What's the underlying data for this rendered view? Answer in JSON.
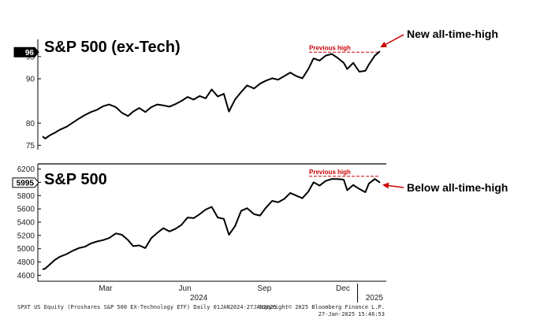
{
  "colors": {
    "line": "#000000",
    "annotation": "#cc0000",
    "badge_top_bg": "#000000",
    "badge_top_fg": "#ffffff",
    "badge_bottom_bg": "#ffffff",
    "badge_bottom_fg": "#000000"
  },
  "chart_data": [
    {
      "type": "line",
      "title": "S&P 500 (ex-Tech)",
      "ylim": [
        74,
        98
      ],
      "yticks": [
        75,
        80,
        90,
        95
      ],
      "last_value_label": "96",
      "previous_high_label": "Previous high",
      "previous_high_value": 96,
      "annotation": "New all-time-high",
      "series": [
        {
          "x": [
            "2024-01-02",
            "2024-01-05",
            "2024-01-10",
            "2024-01-16",
            "2024-01-22",
            "2024-01-30",
            "2024-02-06",
            "2024-02-13",
            "2024-02-20",
            "2024-02-27",
            "2024-03-05",
            "2024-03-12",
            "2024-03-19",
            "2024-03-27",
            "2024-04-03",
            "2024-04-10",
            "2024-04-16",
            "2024-04-23",
            "2024-04-30",
            "2024-05-07",
            "2024-05-14",
            "2024-05-21",
            "2024-05-28",
            "2024-06-04",
            "2024-06-11",
            "2024-06-18",
            "2024-06-25",
            "2024-07-02",
            "2024-07-09",
            "2024-07-16",
            "2024-07-23",
            "2024-07-30",
            "2024-08-05",
            "2024-08-12",
            "2024-08-19",
            "2024-08-26",
            "2024-09-03",
            "2024-09-10",
            "2024-09-17",
            "2024-09-24",
            "2024-10-01",
            "2024-10-08",
            "2024-10-15",
            "2024-10-22",
            "2024-10-29",
            "2024-11-05",
            "2024-11-11",
            "2024-11-18",
            "2024-11-25",
            "2024-12-02",
            "2024-12-09",
            "2024-12-16",
            "2024-12-20",
            "2024-12-27",
            "2025-01-03",
            "2025-01-10",
            "2025-01-14",
            "2025-01-21",
            "2025-01-27"
          ],
          "y": [
            77.0,
            76.5,
            77.2,
            77.8,
            78.5,
            79.2,
            80.1,
            81.0,
            81.8,
            82.5,
            83.0,
            83.8,
            84.2,
            83.6,
            82.3,
            81.6,
            82.6,
            83.4,
            82.5,
            83.6,
            84.2,
            84.0,
            83.7,
            84.3,
            85.0,
            85.9,
            85.3,
            86.1,
            85.6,
            87.6,
            86.0,
            86.6,
            82.6,
            85.3,
            87.0,
            88.5,
            87.8,
            88.9,
            89.6,
            90.1,
            89.8,
            90.6,
            91.4,
            90.6,
            90.1,
            92.2,
            94.6,
            94.1,
            95.2,
            95.6,
            94.7,
            93.6,
            92.2,
            93.6,
            91.6,
            91.8,
            93.2,
            95.2,
            96.2
          ]
        }
      ]
    },
    {
      "type": "line",
      "title": "S&P 500",
      "ylim": [
        4570,
        6230
      ],
      "yticks": [
        4600,
        4800,
        5000,
        5200,
        5400,
        5600,
        5800,
        6000,
        6200
      ],
      "last_value_label": "5995",
      "previous_high_label": "Previous high",
      "previous_high_value": 6090,
      "annotation": "Below all-time-high",
      "series": [
        {
          "x": [
            "2024-01-02",
            "2024-01-05",
            "2024-01-10",
            "2024-01-16",
            "2024-01-22",
            "2024-01-30",
            "2024-02-06",
            "2024-02-13",
            "2024-02-20",
            "2024-02-27",
            "2024-03-05",
            "2024-03-12",
            "2024-03-19",
            "2024-03-27",
            "2024-04-03",
            "2024-04-10",
            "2024-04-16",
            "2024-04-23",
            "2024-04-30",
            "2024-05-07",
            "2024-05-14",
            "2024-05-21",
            "2024-05-28",
            "2024-06-04",
            "2024-06-11",
            "2024-06-18",
            "2024-06-25",
            "2024-07-02",
            "2024-07-09",
            "2024-07-16",
            "2024-07-23",
            "2024-07-30",
            "2024-08-05",
            "2024-08-12",
            "2024-08-19",
            "2024-08-26",
            "2024-09-03",
            "2024-09-10",
            "2024-09-17",
            "2024-09-24",
            "2024-10-01",
            "2024-10-08",
            "2024-10-15",
            "2024-10-22",
            "2024-10-29",
            "2024-11-05",
            "2024-11-11",
            "2024-11-18",
            "2024-11-25",
            "2024-12-02",
            "2024-12-09",
            "2024-12-16",
            "2024-12-20",
            "2024-12-27",
            "2025-01-03",
            "2025-01-10",
            "2025-01-14",
            "2025-01-21",
            "2025-01-27"
          ],
          "y": [
            4690,
            4700,
            4760,
            4830,
            4880,
            4920,
            4970,
            5010,
            5030,
            5080,
            5110,
            5130,
            5160,
            5230,
            5210,
            5130,
            5040,
            5050,
            5010,
            5160,
            5240,
            5310,
            5260,
            5300,
            5360,
            5470,
            5460,
            5520,
            5590,
            5630,
            5470,
            5450,
            5210,
            5340,
            5570,
            5610,
            5520,
            5500,
            5620,
            5720,
            5700,
            5750,
            5840,
            5800,
            5760,
            5860,
            6000,
            5950,
            6020,
            6050,
            6050,
            6040,
            5880,
            5960,
            5900,
            5850,
            5980,
            6050,
            5995
          ]
        }
      ]
    }
  ],
  "x_axis": {
    "month_labels": [
      {
        "label": "Mar",
        "date": "2024-03-15"
      },
      {
        "label": "Jun",
        "date": "2024-06-15"
      },
      {
        "label": "Sep",
        "date": "2024-09-15"
      },
      {
        "label": "Dec",
        "date": "2024-12-15"
      }
    ],
    "year_labels": [
      {
        "label": "2024",
        "date": "2024-07-01"
      },
      {
        "label": "2025",
        "date": "2025-01-15"
      }
    ],
    "range": [
      "2024-01-02",
      "2025-01-27"
    ]
  },
  "footer": {
    "left": "SPXT US Equity (Proshares S&P 500 EX-Technology ETF)  Daily 01JAN2024-27JAN2025",
    "right_line1": "Copyright© 2025 Bloomberg Finance L.P.",
    "right_line2": "27-Jan-2025 15:46:53"
  }
}
